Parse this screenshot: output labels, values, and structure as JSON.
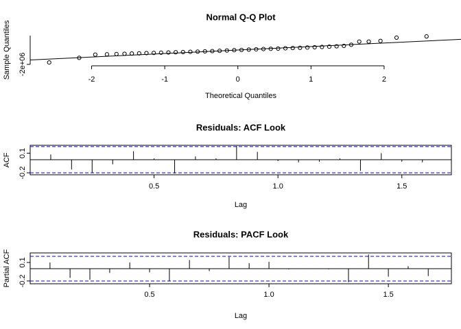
{
  "chart_data": [
    {
      "type": "scatter",
      "title": "Normal Q-Q Plot",
      "x_label": "Theoretical Quantiles",
      "y_label": "Sample Quantiles",
      "x": [
        -2.58,
        -2.17,
        -1.95,
        -1.79,
        -1.66,
        -1.55,
        -1.45,
        -1.35,
        -1.25,
        -1.15,
        -1.05,
        -0.95,
        -0.85,
        -0.75,
        -0.65,
        -0.55,
        -0.45,
        -0.35,
        -0.25,
        -0.15,
        -0.05,
        0.05,
        0.15,
        0.25,
        0.35,
        0.45,
        0.55,
        0.65,
        0.75,
        0.85,
        0.95,
        1.05,
        1.15,
        1.25,
        1.35,
        1.45,
        1.55,
        1.66,
        1.79,
        1.95,
        2.17,
        2.58
      ],
      "y": [
        -1730000,
        -1090000,
        -640000,
        -600000,
        -560000,
        -520000,
        -490000,
        -460000,
        -430000,
        -400000,
        -370000,
        -340000,
        -310000,
        -280000,
        -250000,
        -220000,
        -190000,
        -150000,
        -110000,
        -70000,
        -20000,
        20000,
        60000,
        100000,
        140000,
        170000,
        200000,
        240000,
        280000,
        310000,
        350000,
        390000,
        430000,
        470000,
        520000,
        580000,
        730000,
        1180000,
        1180000,
        1270000,
        1730000,
        1900000
      ],
      "reference_line": {
        "intercept": 0,
        "slope": 490000
      },
      "xlim": [
        -2.84,
        2.92
      ],
      "ylim": [
        -2200000,
        2200000
      ],
      "xticks": [
        -2,
        -1,
        0,
        1,
        2
      ],
      "yticks": [
        {
          "value": -2000000,
          "label": "-2e+06"
        }
      ],
      "color": "#000000"
    },
    {
      "type": "bar",
      "title": "Residuals: ACF Look",
      "x_label": "Lag",
      "y_label": "ACF",
      "x": [
        0.083,
        0.167,
        0.25,
        0.333,
        0.417,
        0.5,
        0.583,
        0.667,
        0.75,
        0.833,
        0.917,
        1,
        1.083,
        1.167,
        1.25,
        1.333,
        1.417,
        1.5,
        1.583
      ],
      "values": [
        0.08,
        -0.15,
        -0.2,
        -0.07,
        0.13,
        0.02,
        -0.21,
        0.05,
        0.02,
        0.21,
        0.12,
        -0.02,
        -0.04,
        -0.03,
        0.02,
        -0.17,
        0.1,
        -0.03,
        -0.04
      ],
      "confidence_limit": 0.2,
      "xlim": [
        0.0,
        1.7
      ],
      "ylim": [
        -0.23,
        0.22
      ],
      "xticks": [
        0.5,
        {
          "value": 1,
          "label": "1.0"
        },
        1.5
      ],
      "yticks": [
        0.1,
        -0.2
      ],
      "color": "#000000",
      "ci_color": "#0000ff"
    },
    {
      "type": "bar",
      "title": "Residuals: PACF Look",
      "x_label": "Lag",
      "y_label": "Partial ACF",
      "x": [
        0.083,
        0.167,
        0.25,
        0.333,
        0.417,
        0.5,
        0.583,
        0.667,
        0.75,
        0.833,
        0.917,
        1,
        1.083,
        1.167,
        1.25,
        1.333,
        1.417,
        1.5,
        1.583,
        1.667
      ],
      "values": [
        0.1,
        -0.15,
        -0.18,
        -0.07,
        0.1,
        -0.06,
        -0.2,
        0.14,
        -0.04,
        0.19,
        0.09,
        0.11,
        -0.01,
        0.0,
        -0.01,
        -0.22,
        0.23,
        -0.13,
        0.04,
        -0.12
      ],
      "confidence_limit": 0.2,
      "xlim": [
        0.0,
        1.764
      ],
      "ylim": [
        -0.245,
        0.255
      ],
      "xticks": [
        0.5,
        {
          "value": 1,
          "label": "1.0"
        },
        1.5
      ],
      "yticks": [
        0.1,
        -0.2
      ],
      "color": "#000000",
      "ci_color": "#0000ff"
    }
  ]
}
